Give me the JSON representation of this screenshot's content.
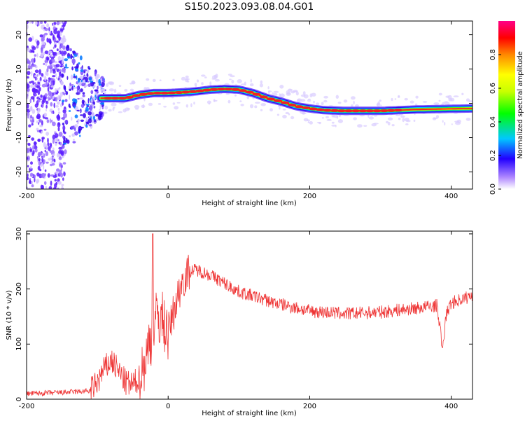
{
  "title": "S150.2023.093.08.04.G01",
  "colors": {
    "snr_line": "#ee3333",
    "ridge": "#ee2222",
    "background": "#ffffff"
  },
  "chart_data": [
    {
      "type": "heatmap",
      "name": "spectrogram",
      "xlabel": "Height of straight line (km)",
      "ylabel": "Frequency (Hz)",
      "xlim": [
        -200,
        430
      ],
      "ylim": [
        -25,
        24
      ],
      "x_ticks": [
        -200,
        0,
        200,
        400
      ],
      "y_ticks": [
        -20,
        -10,
        0,
        10,
        20
      ],
      "ridge_x": [
        -95,
        -80,
        -60,
        -40,
        -20,
        0,
        20,
        40,
        60,
        80,
        100,
        120,
        140,
        160,
        180,
        200,
        220,
        250,
        300,
        350,
        400,
        430
      ],
      "ridge_freq": [
        1.5,
        1.5,
        1.5,
        2.5,
        3.0,
        3.0,
        3.2,
        3.5,
        4.0,
        4.2,
        4.0,
        3.0,
        1.5,
        0.5,
        -0.8,
        -1.5,
        -2.0,
        -2.2,
        -2.2,
        -1.8,
        -1.6,
        -1.5
      ],
      "colorbar": {
        "label": "Normalized spectral amplitude",
        "ticks": [
          "0.0",
          "0.2",
          "0.4",
          "0.6",
          "0.8"
        ],
        "range": [
          0,
          1
        ]
      }
    },
    {
      "type": "line",
      "name": "snr",
      "xlabel": "Height of straight line (km)",
      "ylabel": "SNR (10 * v/v)",
      "xlim": [
        -200,
        430
      ],
      "ylim": [
        0,
        305
      ],
      "x_ticks": [
        -200,
        0,
        200,
        400
      ],
      "y_ticks": [
        0,
        100,
        200,
        300
      ],
      "x": [
        -200,
        -150,
        -110,
        -100,
        -90,
        -80,
        -70,
        -60,
        -50,
        -40,
        -30,
        -20,
        -10,
        0,
        10,
        20,
        30,
        40,
        60,
        80,
        100,
        150,
        200,
        250,
        300,
        350,
        380,
        385,
        388,
        392,
        400,
        430
      ],
      "y": [
        10,
        12,
        15,
        30,
        55,
        70,
        50,
        30,
        25,
        40,
        80,
        140,
        150,
        120,
        170,
        215,
        232,
        235,
        225,
        210,
        195,
        175,
        160,
        155,
        158,
        165,
        170,
        120,
        85,
        150,
        175,
        188
      ]
    }
  ]
}
